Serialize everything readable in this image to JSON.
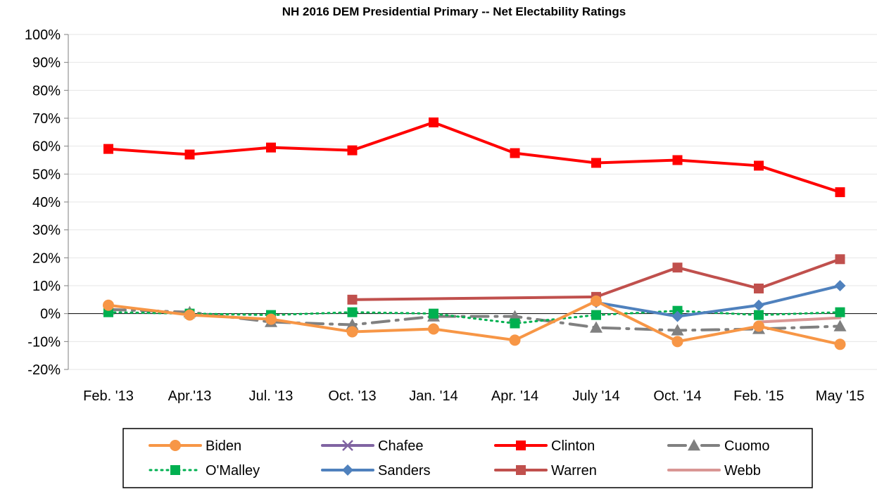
{
  "chart_data": {
    "type": "line",
    "title": "NH 2016 DEM Presidential Primary -- Net Electability Ratings",
    "xlabel": "",
    "ylabel": "",
    "ylim": [
      -20,
      100
    ],
    "yticks": [
      "100%",
      "90%",
      "80%",
      "70%",
      "60%",
      "50%",
      "40%",
      "30%",
      "20%",
      "10%",
      "0%",
      "-10%",
      "-20%"
    ],
    "categories": [
      "Feb. '13",
      "Apr.'13",
      "Jul. '13",
      "Oct. '13",
      "Jan. '14",
      "Apr. '14",
      "July '14",
      "Oct. '14",
      "Feb. '15",
      "May '15"
    ],
    "legend_position": "bottom",
    "series": [
      {
        "name": "Biden",
        "color": "#F79646",
        "marker": "circle",
        "dash": "solid",
        "values": [
          3,
          -0.5,
          -2,
          -6.5,
          -5.5,
          -9.5,
          4.5,
          -10,
          -4.5,
          -11
        ]
      },
      {
        "name": "Chafee",
        "color": "#8064A2",
        "marker": "x",
        "dash": "solid",
        "values": [
          null,
          null,
          null,
          null,
          null,
          null,
          null,
          null,
          null,
          null
        ]
      },
      {
        "name": "Clinton",
        "color": "#FF0000",
        "marker": "square",
        "dash": "solid",
        "values": [
          59,
          57,
          59.5,
          58.5,
          68.5,
          57.5,
          54,
          55,
          53,
          43.5
        ]
      },
      {
        "name": "Cuomo",
        "color": "#808080",
        "marker": "triangle",
        "dash": "dashdot",
        "values": [
          1.5,
          0.5,
          -3,
          -4,
          -1,
          -1,
          -5,
          -6,
          -5.5,
          -4.5
        ]
      },
      {
        "name": "O'Malley",
        "color": "#00B050",
        "marker": "square",
        "dash": "dot",
        "values": [
          0.5,
          0,
          -0.5,
          0.5,
          0,
          -3.5,
          -0.5,
          1,
          -0.5,
          0.5
        ]
      },
      {
        "name": "Sanders",
        "color": "#4F81BD",
        "marker": "diamond",
        "dash": "solid",
        "values": [
          null,
          null,
          null,
          null,
          null,
          null,
          4,
          -1,
          3,
          10
        ]
      },
      {
        "name": "Warren",
        "color": "#C0504D",
        "marker": "square",
        "dash": "solid",
        "values": [
          null,
          null,
          null,
          5,
          null,
          null,
          6,
          16.5,
          9,
          19.5
        ]
      },
      {
        "name": "Webb",
        "color": "#D99694",
        "marker": "none",
        "dash": "solid",
        "values": [
          null,
          null,
          null,
          null,
          null,
          null,
          null,
          null,
          -3,
          -1.5
        ]
      }
    ]
  }
}
